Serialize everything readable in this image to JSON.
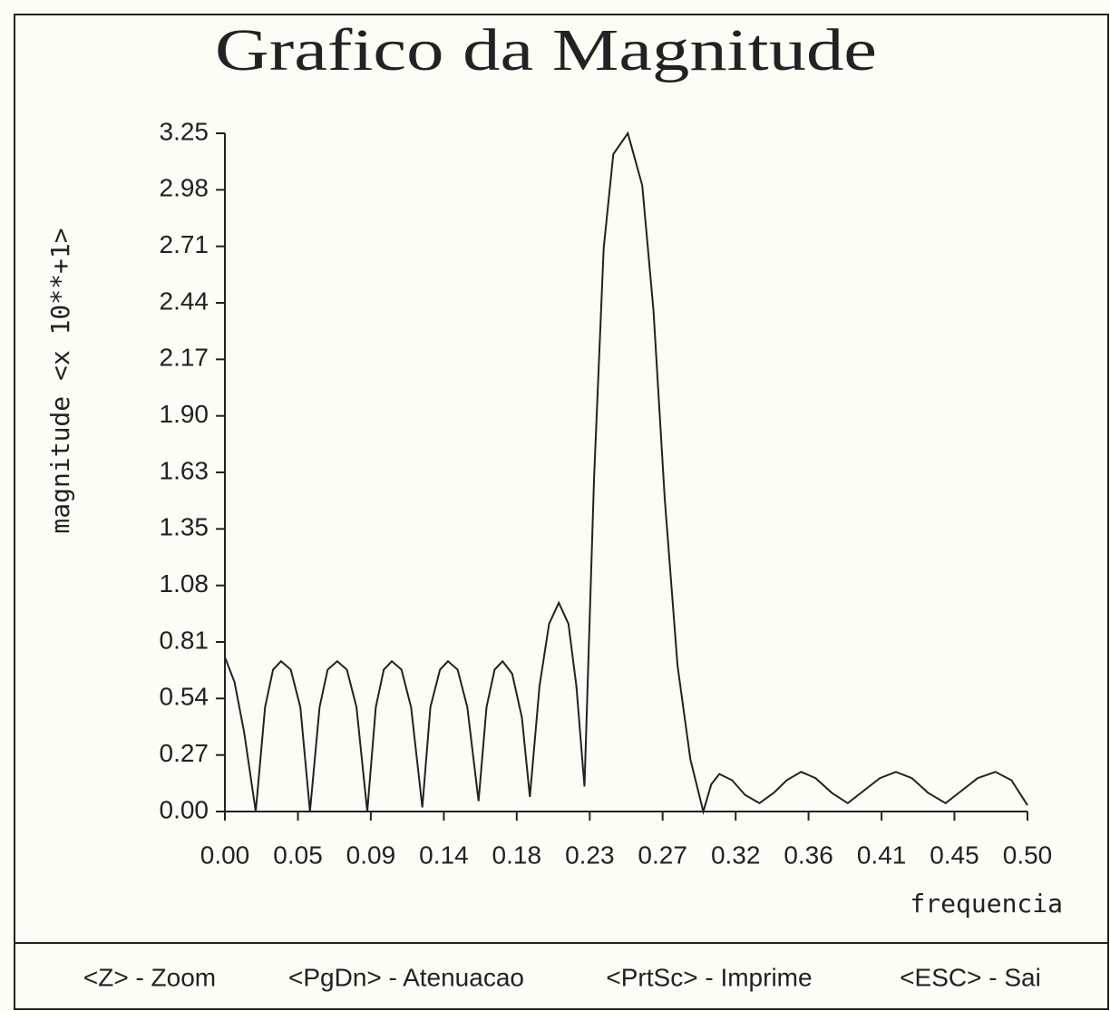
{
  "chart_data": {
    "type": "line",
    "title": "Grafico da Magnitude",
    "ylabel": "magnitude <x 10**+1>",
    "xlabel": "frequencia",
    "color": "#222222",
    "x": [
      0,
      0.006,
      0.012,
      0.0192,
      0.025,
      0.03,
      0.035,
      0.041,
      0.047,
      0.053,
      0.059,
      0.064,
      0.07,
      0.076,
      0.082,
      0.0887,
      0.094,
      0.099,
      0.104,
      0.11,
      0.116,
      0.123,
      0.128,
      0.134,
      0.139,
      0.145,
      0.151,
      0.158,
      0.163,
      0.168,
      0.173,
      0.179,
      0.185,
      0.19,
      0.196,
      0.202,
      0.208,
      0.214,
      0.219,
      0.224,
      0.23,
      0.236,
      0.242,
      0.251,
      0.26,
      0.267,
      0.274,
      0.282,
      0.29,
      0.298,
      0.303,
      0.308,
      0.316,
      0.324,
      0.333,
      0.342,
      0.35,
      0.359,
      0.368,
      0.378,
      0.388,
      0.398,
      0.408,
      0.418,
      0.428,
      0.438,
      0.449,
      0.459,
      0.469,
      0.48,
      0.49,
      0.5
    ],
    "values": [
      0.74,
      0.62,
      0.38,
      0,
      0.5,
      0.68,
      0.72,
      0.68,
      0.5,
      0,
      0.5,
      0.68,
      0.72,
      0.68,
      0.5,
      0,
      0.5,
      0.68,
      0.72,
      0.68,
      0.5,
      0.02,
      0.5,
      0.68,
      0.72,
      0.68,
      0.5,
      0.05,
      0.5,
      0.68,
      0.72,
      0.66,
      0.45,
      0.07,
      0.6,
      0.9,
      1.0,
      0.9,
      0.6,
      0.12,
      1.6,
      2.7,
      3.15,
      3.25,
      3.0,
      2.4,
      1.5,
      0.7,
      0.25,
      0,
      0.13,
      0.18,
      0.15,
      0.08,
      0.04,
      0.09,
      0.15,
      0.19,
      0.16,
      0.09,
      0.04,
      0.1,
      0.16,
      0.19,
      0.16,
      0.09,
      0.04,
      0.1,
      0.16,
      0.19,
      0.15,
      0.03
    ],
    "xlim": [
      0,
      0.5
    ],
    "ylim": [
      0,
      3.25
    ],
    "xticks": [
      {
        "value": 0,
        "label": "0.00"
      },
      {
        "value": 0.0455,
        "label": "0.05"
      },
      {
        "value": 0.0909,
        "label": "0.09"
      },
      {
        "value": 0.1364,
        "label": "0.14"
      },
      {
        "value": 0.1818,
        "label": "0.18"
      },
      {
        "value": 0.2273,
        "label": "0.23"
      },
      {
        "value": 0.2727,
        "label": "0.27"
      },
      {
        "value": 0.3182,
        "label": "0.32"
      },
      {
        "value": 0.3636,
        "label": "0.36"
      },
      {
        "value": 0.4091,
        "label": "0.41"
      },
      {
        "value": 0.4545,
        "label": "0.45"
      },
      {
        "value": 0.5,
        "label": "0.50"
      }
    ],
    "yticks": [
      {
        "value": 0,
        "label": "0.00"
      },
      {
        "value": 0.2708,
        "label": "0.27"
      },
      {
        "value": 0.5417,
        "label": "0.54"
      },
      {
        "value": 0.8125,
        "label": "0.81"
      },
      {
        "value": 1.0833,
        "label": "1.08"
      },
      {
        "value": 1.3542,
        "label": "1.35"
      },
      {
        "value": 1.6251,
        "label": "1.63"
      },
      {
        "value": 1.8958,
        "label": "1.90"
      },
      {
        "value": 2.1667,
        "label": "2.17"
      },
      {
        "value": 2.4375,
        "label": "2.44"
      },
      {
        "value": 2.7083,
        "label": "2.71"
      },
      {
        "value": 2.9792,
        "label": "2.98"
      },
      {
        "value": 3.25,
        "label": "3.25"
      }
    ],
    "grid": false,
    "menu": [
      "<Z> - Zoom",
      "<PgDn> - Atenuacao",
      "<PrtSc> - Imprime",
      "<ESC> - Sai"
    ]
  }
}
